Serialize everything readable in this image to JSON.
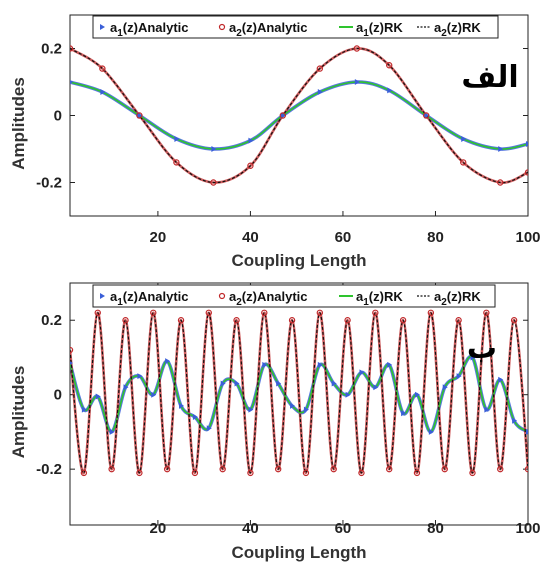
{
  "chart_data": [
    {
      "type": "line",
      "panel_label": "الف",
      "xlabel": "Coupling Length",
      "ylabel": "Amplitudes",
      "xlim": [
        1,
        100
      ],
      "ylim": [
        -0.3,
        0.3
      ],
      "xticks": [
        20,
        40,
        60,
        80,
        100
      ],
      "yticks": [
        0.2,
        0,
        -0.2
      ],
      "ytick_labels": [
        "0.2",
        "0",
        "-0.2"
      ],
      "legend_position": "top",
      "legend": [
        {
          "pre": "a",
          "sub": "1",
          "post": "(z)Analytic"
        },
        {
          "pre": "a",
          "sub": "2",
          "post": "(z)Analytic"
        },
        {
          "pre": "a",
          "sub": "1",
          "post": "(z)RK"
        },
        {
          "pre": "a",
          "sub": "2",
          "post": "(z)RK"
        }
      ],
      "series": [
        {
          "color": "#3a5fd8",
          "marker": "triangle",
          "x": [
            1,
            8,
            16,
            24,
            32,
            40,
            47,
            55,
            63,
            70,
            78,
            86,
            94,
            100
          ],
          "values": [
            0.1,
            0.07,
            0.0,
            -0.07,
            -0.1,
            -0.075,
            0.0,
            0.07,
            0.1,
            0.075,
            0.0,
            -0.07,
            -0.1,
            -0.085
          ]
        },
        {
          "color": "#c0282a",
          "marker": "circle",
          "x": [
            1,
            8,
            16,
            24,
            32,
            40,
            47,
            55,
            63,
            70,
            78,
            86,
            94,
            100
          ],
          "values": [
            0.2,
            0.14,
            0.0,
            -0.14,
            -0.2,
            -0.15,
            0.0,
            0.14,
            0.2,
            0.15,
            0.0,
            -0.14,
            -0.2,
            -0.17
          ]
        },
        {
          "color": "#2ec42e",
          "marker": "line",
          "x": [
            1,
            8,
            16,
            24,
            32,
            40,
            47,
            55,
            63,
            70,
            78,
            86,
            94,
            100
          ],
          "values": [
            0.1,
            0.07,
            0.0,
            -0.07,
            -0.1,
            -0.075,
            0.0,
            0.07,
            0.1,
            0.075,
            0.0,
            -0.07,
            -0.1,
            -0.085
          ]
        },
        {
          "color": "#111111",
          "marker": "dashed",
          "x": [
            1,
            8,
            16,
            24,
            32,
            40,
            47,
            55,
            63,
            70,
            78,
            86,
            94,
            100
          ],
          "values": [
            0.2,
            0.14,
            0.0,
            -0.14,
            -0.2,
            -0.15,
            0.0,
            0.14,
            0.2,
            0.15,
            0.0,
            -0.14,
            -0.2,
            -0.17
          ]
        }
      ]
    },
    {
      "type": "line",
      "panel_label": "ب",
      "xlabel": "Coupling Length",
      "ylabel": "Amplitudes",
      "xlim": [
        1,
        100
      ],
      "ylim": [
        -0.35,
        0.3
      ],
      "xticks": [
        20,
        40,
        60,
        80,
        100
      ],
      "yticks": [
        0.2,
        0,
        -0.2
      ],
      "ytick_labels": [
        "0.2",
        "0",
        "-0.2"
      ],
      "legend_position": "top",
      "legend": [
        {
          "pre": "a",
          "sub": "1",
          "post": "(z)Analytic"
        },
        {
          "pre": "a",
          "sub": "2",
          "post": "(z)Analytic"
        },
        {
          "pre": "a",
          "sub": "1",
          "post": "(z)RK"
        },
        {
          "pre": "a",
          "sub": "2",
          "post": "(z)RK"
        }
      ],
      "series": [
        {
          "color": "#3a5fd8",
          "marker": "triangle",
          "x": [
            1,
            4,
            7,
            10,
            13,
            16,
            19,
            22,
            25,
            28,
            31,
            34,
            37,
            40,
            43,
            46,
            49,
            52,
            55,
            58,
            61,
            64,
            67,
            70,
            73,
            76,
            79,
            82,
            85,
            88,
            91,
            94,
            97,
            100
          ],
          "values": [
            0.085,
            -0.04,
            -0.005,
            -0.1,
            0.02,
            0.05,
            0.0,
            0.09,
            -0.03,
            -0.06,
            -0.09,
            0.03,
            0.03,
            -0.04,
            0.08,
            0.03,
            -0.03,
            -0.04,
            0.08,
            0.03,
            0.0,
            0.06,
            0.02,
            0.08,
            -0.05,
            0.0,
            -0.1,
            0.02,
            0.05,
            0.1,
            -0.04,
            0.04,
            -0.07,
            -0.1
          ]
        },
        {
          "color": "#c0282a",
          "marker": "circle",
          "x": [
            1,
            4,
            7,
            10,
            13,
            16,
            19,
            22,
            25,
            28,
            31,
            34,
            37,
            40,
            43,
            46,
            49,
            52,
            55,
            58,
            61,
            64,
            67,
            70,
            73,
            76,
            79,
            82,
            85,
            88,
            91,
            94,
            97,
            100
          ],
          "values": [
            0.12,
            -0.21,
            0.22,
            -0.2,
            0.2,
            -0.21,
            0.22,
            -0.2,
            0.2,
            -0.21,
            0.22,
            -0.2,
            0.2,
            -0.21,
            0.22,
            -0.2,
            0.2,
            -0.21,
            0.22,
            -0.2,
            0.2,
            -0.21,
            0.22,
            -0.2,
            0.2,
            -0.21,
            0.22,
            -0.2,
            0.2,
            -0.21,
            0.22,
            -0.2,
            0.2,
            -0.2
          ]
        },
        {
          "color": "#2ec42e",
          "marker": "line",
          "x": [
            1,
            4,
            7,
            10,
            13,
            16,
            19,
            22,
            25,
            28,
            31,
            34,
            37,
            40,
            43,
            46,
            49,
            52,
            55,
            58,
            61,
            64,
            67,
            70,
            73,
            76,
            79,
            82,
            85,
            88,
            91,
            94,
            97,
            100
          ],
          "values": [
            0.085,
            -0.04,
            -0.005,
            -0.1,
            0.02,
            0.05,
            0.0,
            0.09,
            -0.03,
            -0.06,
            -0.09,
            0.03,
            0.03,
            -0.04,
            0.08,
            0.03,
            -0.03,
            -0.04,
            0.08,
            0.03,
            0.0,
            0.06,
            0.02,
            0.08,
            -0.05,
            0.0,
            -0.1,
            0.02,
            0.05,
            0.1,
            -0.04,
            0.04,
            -0.07,
            -0.1
          ]
        },
        {
          "color": "#111111",
          "marker": "dashed",
          "x": [
            1,
            4,
            7,
            10,
            13,
            16,
            19,
            22,
            25,
            28,
            31,
            34,
            37,
            40,
            43,
            46,
            49,
            52,
            55,
            58,
            61,
            64,
            67,
            70,
            73,
            76,
            79,
            82,
            85,
            88,
            91,
            94,
            97,
            100
          ],
          "values": [
            0.12,
            -0.21,
            0.22,
            -0.2,
            0.2,
            -0.21,
            0.22,
            -0.2,
            0.2,
            -0.21,
            0.22,
            -0.2,
            0.2,
            -0.21,
            0.22,
            -0.2,
            0.2,
            -0.21,
            0.22,
            -0.2,
            0.2,
            -0.21,
            0.22,
            -0.2,
            0.2,
            -0.21,
            0.22,
            -0.2,
            0.2,
            -0.21,
            0.22,
            -0.2,
            0.2,
            -0.2
          ]
        }
      ]
    }
  ]
}
